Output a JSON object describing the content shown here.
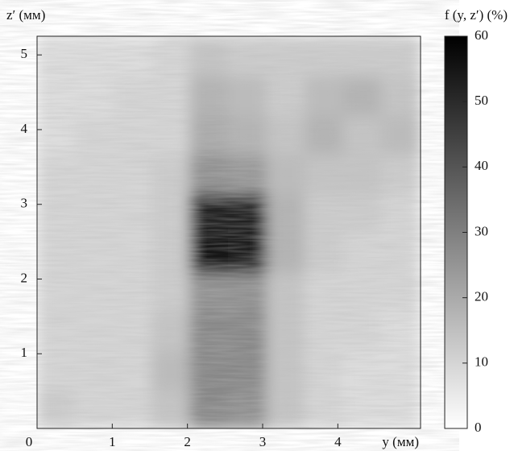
{
  "chart_data": {
    "type": "heatmap",
    "xlabel": "y (мм)",
    "ylabel": "z′ (мм)",
    "x": [
      0.255,
      0.765,
      1.275,
      1.785,
      2.295,
      2.805,
      3.315,
      3.825,
      4.335,
      4.845
    ],
    "y": [
      0.26,
      0.79,
      1.31,
      1.84,
      2.36,
      2.89,
      3.41,
      3.94,
      4.46,
      4.99
    ],
    "values": [
      [
        12,
        10,
        10,
        14,
        28,
        26,
        14,
        10,
        8,
        8
      ],
      [
        10,
        10,
        10,
        16,
        28,
        28,
        14,
        10,
        8,
        8
      ],
      [
        10,
        10,
        10,
        14,
        28,
        28,
        14,
        10,
        10,
        8
      ],
      [
        10,
        10,
        10,
        12,
        26,
        26,
        14,
        10,
        10,
        10
      ],
      [
        10,
        10,
        10,
        12,
        55,
        54,
        18,
        12,
        10,
        10
      ],
      [
        10,
        10,
        10,
        12,
        52,
        52,
        18,
        12,
        12,
        10
      ],
      [
        10,
        10,
        10,
        12,
        26,
        24,
        16,
        14,
        14,
        12
      ],
      [
        8,
        10,
        10,
        10,
        20,
        18,
        14,
        18,
        14,
        16
      ],
      [
        8,
        8,
        10,
        10,
        18,
        16,
        12,
        16,
        18,
        14
      ],
      [
        8,
        8,
        8,
        10,
        14,
        12,
        12,
        12,
        12,
        12
      ]
    ],
    "xlim": [
      0,
      5.1
    ],
    "ylim": [
      0,
      5.25
    ],
    "xticks": [
      0,
      1,
      2,
      3,
      4
    ],
    "yticks": [
      1,
      2,
      3,
      4,
      5
    ],
    "colorbar": {
      "label": "f (y, z′) (%)",
      "lim": [
        0,
        60
      ],
      "ticks": [
        0,
        10,
        20,
        30,
        40,
        50,
        60
      ],
      "colors": [
        "#ffffff",
        "#000000"
      ]
    }
  }
}
